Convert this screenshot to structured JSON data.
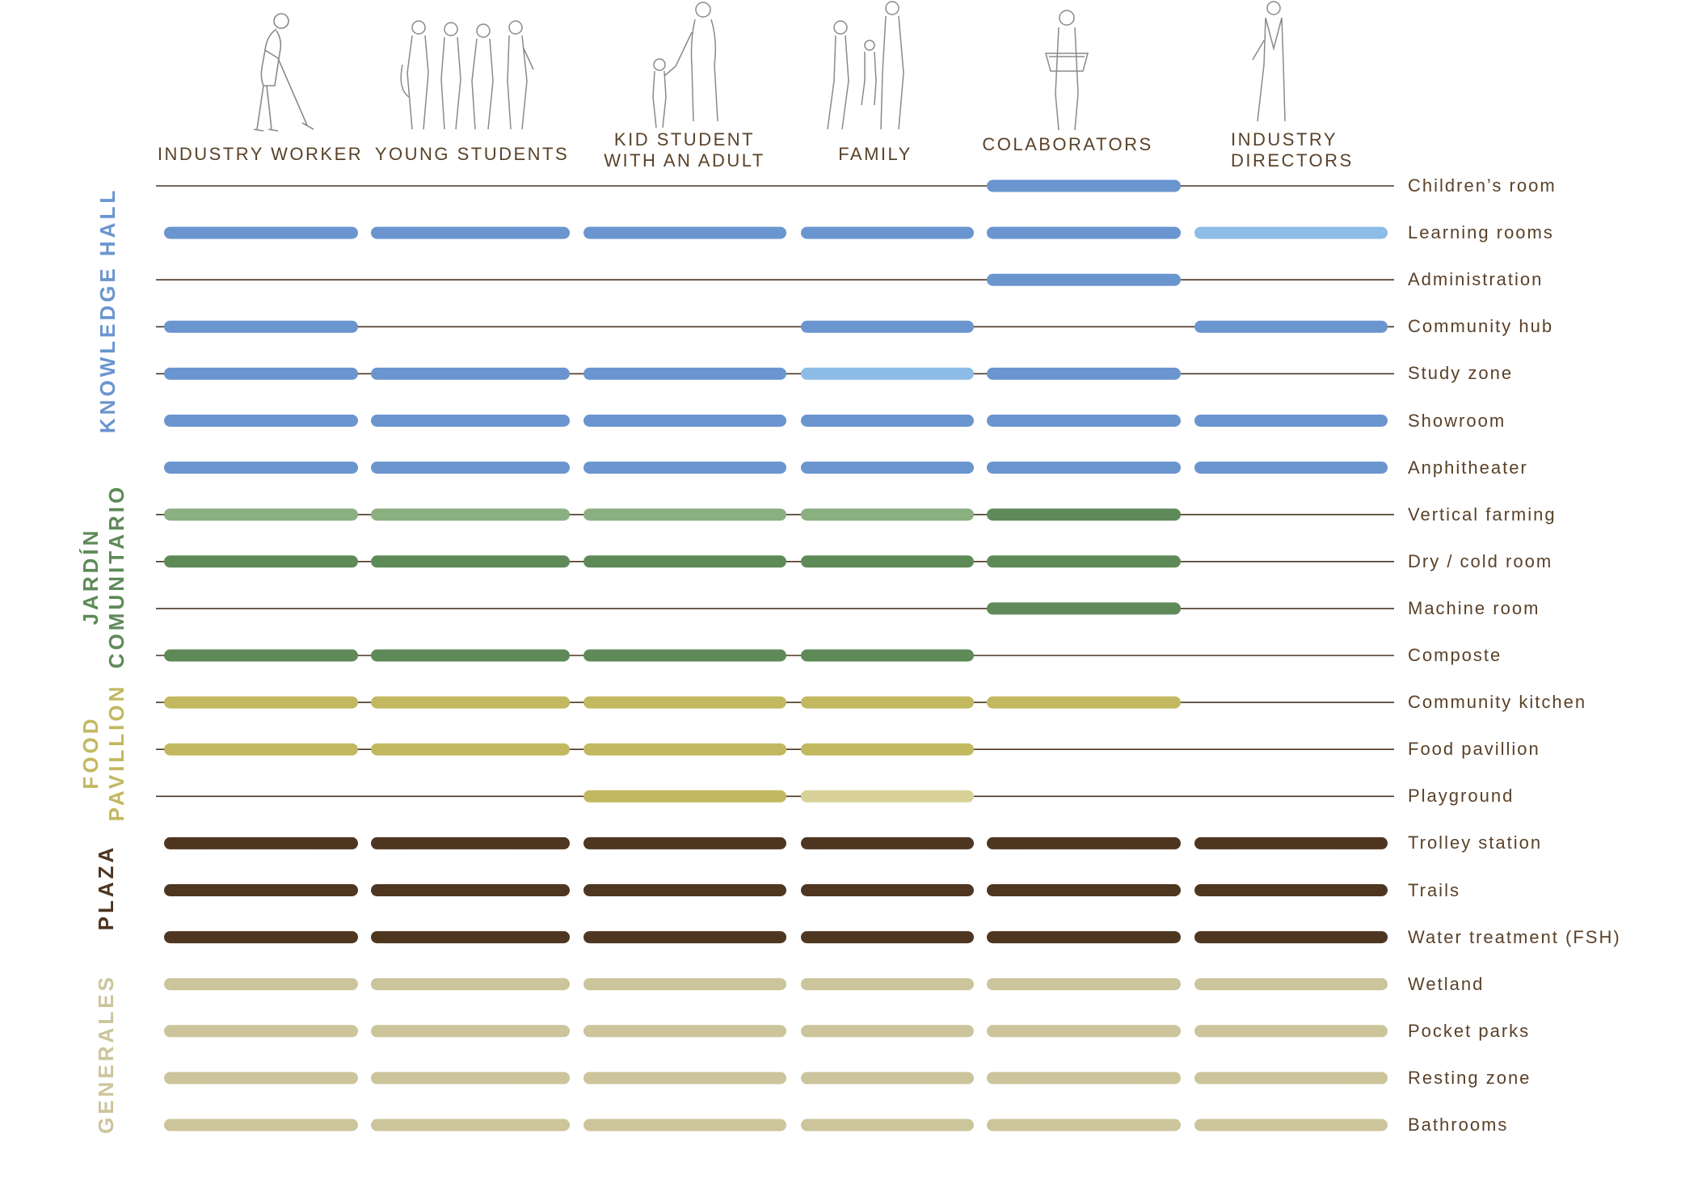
{
  "users": [
    {
      "id": "industry-worker",
      "label": "INDUSTRY WORKER",
      "figure": "worker-with-broom-icon"
    },
    {
      "id": "young-students",
      "label": "YOUNG STUDENTS",
      "figure": "student-group-icon"
    },
    {
      "id": "kid-student-adult",
      "label": "KID STUDENT\nWITH AN ADULT",
      "figure": "adult-with-child-icon"
    },
    {
      "id": "family",
      "label": "FAMILY",
      "figure": "family-icon"
    },
    {
      "id": "colaborators",
      "label": "COLABORATORS",
      "figure": "collaborator-with-basket-icon"
    },
    {
      "id": "industry-directors",
      "label": "INDUSTRY\nDIRECTORS",
      "figure": "director-icon"
    }
  ],
  "groups": [
    {
      "id": "knowledge-hall",
      "label": "KNOWLEDGE HALL",
      "color": "#6a95cf"
    },
    {
      "id": "jardin-comunitario",
      "label": "JARDÍN\nCOMUNITARIO",
      "color": "#5e8a58"
    },
    {
      "id": "food-pavillion",
      "label": "FOOD\nPAVILLION",
      "color": "#c2b860"
    },
    {
      "id": "plaza",
      "label": "PLAZA",
      "color": "#4e3620"
    },
    {
      "id": "generales",
      "label": "GENERALES",
      "color": "#ccc49b"
    }
  ],
  "colors": {
    "kh": "#6a95cf",
    "kh_light": "#8dbde6",
    "jc_light": "#8aaf80",
    "jc": "#5e8a58",
    "fp": "#c2b860",
    "fp_light": "#d8d29a",
    "plaza": "#4e3620",
    "gen": "#ccc49b",
    "line": "#4a3520"
  },
  "spaces": [
    {
      "label": "Children’s room",
      "group": "knowledge-hall",
      "uses": [
        null,
        null,
        null,
        null,
        "kh",
        null
      ]
    },
    {
      "label": "Learning rooms",
      "group": "knowledge-hall",
      "uses": [
        "kh",
        "kh",
        "kh",
        "kh",
        "kh",
        "kh_light"
      ]
    },
    {
      "label": "Administration",
      "group": "knowledge-hall",
      "uses": [
        null,
        null,
        null,
        null,
        "kh",
        null
      ]
    },
    {
      "label": "Community hub",
      "group": "knowledge-hall",
      "uses": [
        "kh",
        null,
        null,
        "kh",
        null,
        "kh"
      ]
    },
    {
      "label": "Study zone",
      "group": "knowledge-hall",
      "uses": [
        "kh",
        "kh",
        "kh",
        "kh_light",
        "kh",
        null
      ]
    },
    {
      "label": "Showroom",
      "group": "knowledge-hall",
      "uses": [
        "kh",
        "kh",
        "kh",
        "kh",
        "kh",
        "kh"
      ]
    },
    {
      "label": "Anphitheater",
      "group": "knowledge-hall",
      "uses": [
        "kh",
        "kh",
        "kh",
        "kh",
        "kh",
        "kh"
      ]
    },
    {
      "label": "Vertical farming",
      "group": "jardin-comunitario",
      "uses": [
        "jc_light",
        "jc_light",
        "jc_light",
        "jc_light",
        "jc",
        null
      ]
    },
    {
      "label": "Dry / cold room",
      "group": "jardin-comunitario",
      "uses": [
        "jc",
        "jc",
        "jc",
        "jc",
        "jc",
        null
      ]
    },
    {
      "label": "Machine room",
      "group": "jardin-comunitario",
      "uses": [
        null,
        null,
        null,
        null,
        "jc",
        null
      ]
    },
    {
      "label": "Composte",
      "group": "jardin-comunitario",
      "uses": [
        "jc",
        "jc",
        "jc",
        "jc",
        null,
        null
      ]
    },
    {
      "label": "Community kitchen",
      "group": "food-pavillion",
      "uses": [
        "fp",
        "fp",
        "fp",
        "fp",
        "fp",
        null
      ]
    },
    {
      "label": "Food pavillion",
      "group": "food-pavillion",
      "uses": [
        "fp",
        "fp",
        "fp",
        "fp",
        null,
        null
      ]
    },
    {
      "label": "Playground",
      "group": "food-pavillion",
      "uses": [
        null,
        null,
        "fp",
        "fp_light",
        null,
        null
      ]
    },
    {
      "label": "Trolley station",
      "group": "plaza",
      "uses": [
        "plaza",
        "plaza",
        "plaza",
        "plaza",
        "plaza",
        "plaza"
      ]
    },
    {
      "label": "Trails",
      "group": "plaza",
      "uses": [
        "plaza",
        "plaza",
        "plaza",
        "plaza",
        "plaza",
        "plaza"
      ]
    },
    {
      "label": "Water treatment (FSH)",
      "group": "plaza",
      "uses": [
        "plaza",
        "plaza",
        "plaza",
        "plaza",
        "plaza",
        "plaza"
      ]
    },
    {
      "label": "Wetland",
      "group": "generales",
      "uses": [
        "gen",
        "gen",
        "gen",
        "gen",
        "gen",
        "gen"
      ]
    },
    {
      "label": "Pocket parks",
      "group": "generales",
      "uses": [
        "gen",
        "gen",
        "gen",
        "gen",
        "gen",
        "gen"
      ]
    },
    {
      "label": "Resting zone",
      "group": "generales",
      "uses": [
        "gen",
        "gen",
        "gen",
        "gen",
        "gen",
        "gen"
      ]
    },
    {
      "label": "Bathrooms",
      "group": "generales",
      "uses": [
        "gen",
        "gen",
        "gen",
        "gen",
        "gen",
        "gen"
      ]
    }
  ]
}
